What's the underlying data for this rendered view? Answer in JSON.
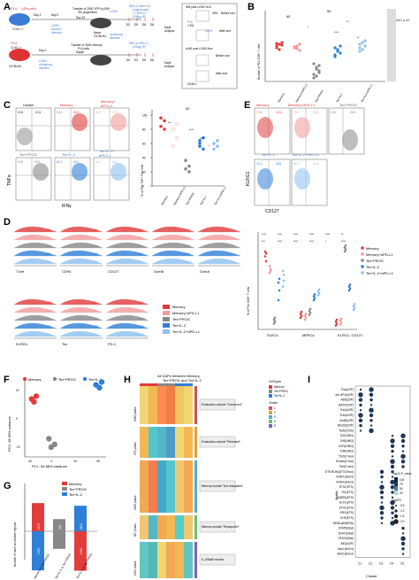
{
  "panels": {
    "a": {
      "letter": "A",
      "row1": {
        "mouse_label": "P14",
        "mouse_sub": "IL2Rα-ortho",
        "mouse_sub2": "CD45.1+",
        "day_minus1": "Day-1",
        "day0": "Day 0",
        "transfer_text": "Transfer of 2500 YFP+Ly108+",
        "transfer_text2": "Tex progenitors",
        "day26": "Day 26",
        "infection": "LCMV",
        "infection2": "clone13",
        "infection3": "infection",
        "naive": "Naive",
        "naive2": "C57BL/6J",
        "lcmv_arm": "LCMV",
        "lcmv_arm2": "Armstrong",
        "lcmv_arm3": "infection",
        "treat": "PBS or Ortho IL2",
        "treat2": "(1µg/mouse)",
        "treat3": "+/- αPD-L1",
        "treat4": "(200µg IP)",
        "days": [
          "D3",
          "D5",
          "D6",
          "D8"
        ],
        "day8": "Day8",
        "analyse": "Analyse"
      },
      "row2": {
        "mouse_label": "P14",
        "mouse_sub": "CD45.1+",
        "naive": "C57BL/6J",
        "day0": "Day 0",
        "day80": "Day80",
        "transfer_text": "Transfer of 2500 memory",
        "transfer_text2": "P14 cells",
        "lcmv_arm": "LCMV",
        "lcmv_arm2": "Armstrong",
        "lcmv_arm3": "infection",
        "treat": "PBS or αPD-L1",
        "treat2": "(200µg IP)",
        "days": [
          "D0",
          "D3",
          "D5",
          "D6"
        ],
        "day8": "Day8",
        "analyse": "Analyse"
      },
      "sort": {
        "title": "d35 post LCMV cl13",
        "before": "Before sort",
        "pct_before": "39%",
        "after": "After sort",
        "pct_after": "100%",
        "p14": "P14",
        "pct_p14": "1.5%",
        "title2": "d>60 post LCMV Arm",
        "before2": "Before sort",
        "after2": "After sort",
        "gate": "CD45.1"
      }
    },
    "b": {
      "letter": "B",
      "ylabel": "Number of P14 CD8+ T cells",
      "side_title": "d40 p.ch",
      "stats": [
        "NS",
        "NS",
        "*",
        "**",
        "****",
        "**"
      ],
      "groups": [
        "Memory",
        "Memory+αPD-L1",
        "Tex^PROG",
        "Tex^IL2",
        "Tex^IL2+αPD-L1"
      ]
    },
    "c": {
      "letter": "C",
      "unstim": "Unstim",
      "memory": "Memory",
      "memory_pd": "Memory+",
      "memory_pd2": "αPD-L1",
      "texprog": "Tex^PROG",
      "texil2": "Tex^IL-2",
      "texil2pd": "Tex^IL-2+",
      "texil2pd2": "αPD-L1",
      "ylabel_plot": "% of IFN+TNF+ P14 cells",
      "xaxis": "IFNγ",
      "yaxis": "TNFα",
      "stats": [
        "NS",
        "***",
        "****",
        "****",
        "*"
      ],
      "yticks": [
        "0",
        "20",
        "40",
        "60",
        "80",
        "100"
      ],
      "quadrant_values": [
        "0.01",
        "0.11",
        "45.9",
        "51.3",
        "1.01",
        "8.96",
        "28.9",
        "62.1",
        "43.0",
        "51.7",
        "35.3",
        "36.7",
        "0.45",
        "0.70",
        "52.5",
        "54.0"
      ],
      "groups": [
        "Memory",
        "Memory+αPD-L1",
        "Tex^PROG",
        "Tex^IL2",
        "Tex^IL2+αPD-L1"
      ]
    },
    "d": {
      "letter": "D",
      "markers_row1": [
        "T-bet",
        "CD94",
        "CD127",
        "GzmB",
        "GzmA"
      ],
      "markers_row2": [
        "KLRG1",
        "Tox",
        "PD-1"
      ],
      "row1_values": [
        [
          "728",
          "3181",
          "409",
          "2772"
        ],
        [
          "774",
          "2621",
          "260",
          "3774"
        ],
        [
          "143",
          "1098",
          "91",
          "4475"
        ],
        [
          "655",
          "2725",
          "196",
          "5873"
        ],
        [
          "564",
          "2708",
          "178",
          "26227"
        ]
      ],
      "row2_values": [
        [
          "1505",
          "419",
          "3221"
        ],
        [
          "1298",
          "413",
          "2913"
        ],
        [
          "99",
          "3153",
          "10327"
        ],
        [
          "115",
          "2798",
          "5852"
        ],
        [
          "88",
          "3014",
          "6102"
        ]
      ],
      "legend": [
        "Memory",
        "Memory+αPD-L1",
        "Tex^PROG",
        "Tex^IL-2",
        "Tex^IL-2+αPD-L1"
      ]
    },
    "e": {
      "letter": "E",
      "memory": "Memory",
      "memory_pd": "Memory+αPD-L1",
      "texprog": "Tex^PROG",
      "texil2": "Tex^IL-2",
      "texil2pd": "Tex^IL-2+αPD-L1",
      "xaxis": "CD127",
      "yaxis": "KLRG1",
      "quadrant_values": [
        "77.4",
        "22.6",
        "76.0",
        "24.0",
        "0.44",
        "99.6",
        "71.4",
        "28.6",
        "58.7",
        "41.3"
      ],
      "ylabel_plot": "% of P14 CD8+ T cells",
      "categories": [
        "SLECs",
        "MPECs",
        "KLRG1-\nCD127-"
      ],
      "legend": [
        "Memory",
        "Memory+αPD-L1",
        "Tex^PROG",
        "Tex^IL-2",
        "Tex^IL-2+αPD-L1"
      ],
      "stats": [
        "****",
        "****",
        "****",
        "****",
        "****",
        "**",
        "***",
        "****",
        "****",
        "****",
        "*",
        "****"
      ]
    },
    "f": {
      "letter": "F",
      "legend": [
        "Memory",
        "Tex^PROG",
        "Tex^IL-2"
      ],
      "xlabel": "PC1: 54.88% variance",
      "ylabel": "PC2: 28.59% variance",
      "xticks": [
        "-40",
        "0",
        "40",
        "80"
      ],
      "yticks": [
        "-20",
        "0",
        "20"
      ]
    },
    "g": {
      "letter": "G",
      "legend": [
        "Memory",
        "Tex^PROG",
        "Tex^IL-2"
      ],
      "ylabel": "Number of more accessible regions",
      "bars_top": [
        "1274",
        "551",
        "1154"
      ],
      "bars_bottom": [
        "1765",
        "793",
        "1781"
      ],
      "xlabels": [
        "Memory vs Tex^PROG",
        "Tex^IL-2 vs Tex^PROG",
        "Tex^IL-2 vs Tex^PROG"
      ]
    },
    "h": {
      "letter": "H",
      "title": "All DAPs between Memory,",
      "title2": "Tex^PROG and Tex^IL-2",
      "modules": [
        "Exhaustion-module \"Conserved\"",
        "Exhaustion-module \"Reversed\"",
        "Memory-module \"Not reacquired\"",
        "Memory-module \"Reacquired\"",
        "IL-2/Stat5 module"
      ],
      "peaks": [
        "1096 peaks",
        "575 peaks",
        "1405 peaks",
        "817 peaks",
        "1294 peaks"
      ],
      "legend_title": "CellTypes",
      "legend_items": [
        "Memory",
        "Tex^PROG",
        "Tex^IL-2"
      ],
      "cluster_title": "Cluster",
      "clusters": [
        "1",
        "2",
        "3",
        "4",
        "5"
      ]
    },
    "i": {
      "letter": "I",
      "motifs": [
        "Fos(bZIP)",
        "Jun-AP1(bZIP)",
        "Atf3(bZIP)",
        "BATF(bZIP)",
        "Fra1(bZIP)",
        "Fra2(bZIP)",
        "JunB(bZIP)",
        "Nfe2l2(bZIP)",
        "TEAD(TEA)",
        "Tcf7(HMG)",
        "Tcf3(HMG)",
        "LEF1(HMG)",
        "Tcf4(HMG)",
        "Tbx5(T-box)",
        "Eomes(T-box)",
        "Tbet(T-box)",
        "ETS:RUNX(ETS,Runt)",
        "RUNX1(Runt)",
        "RUNX2(Runt)",
        "ETS1(ETS)",
        "Fli1(ETS)",
        "GABPA(ETS)",
        "ELF1(ETS)",
        "ETV1(ETS)",
        "ERG(ETS)",
        "EHF(ETS)",
        "NFkB-p65(RHD)",
        "STAT5(Stat)",
        "STAT1(Stat)",
        "STAT4(Stat)",
        "Atf1(bZIP)",
        "Ascl1(bHLH)",
        "Atoh1(bHLH)"
      ],
      "xlabel": "Cluster",
      "ylabel": "Motifs",
      "clusters": [
        "C1",
        "C2",
        "C3",
        "C4",
        "C5"
      ],
      "legend_title": "-log10.P_value",
      "legend_ticks": [
        "100",
        "75",
        "50",
        "25"
      ],
      "size_title": "log2FC",
      "size_ticks": [
        "0.5",
        "1.0",
        "1.5",
        "2.0"
      ]
    }
  }
}
